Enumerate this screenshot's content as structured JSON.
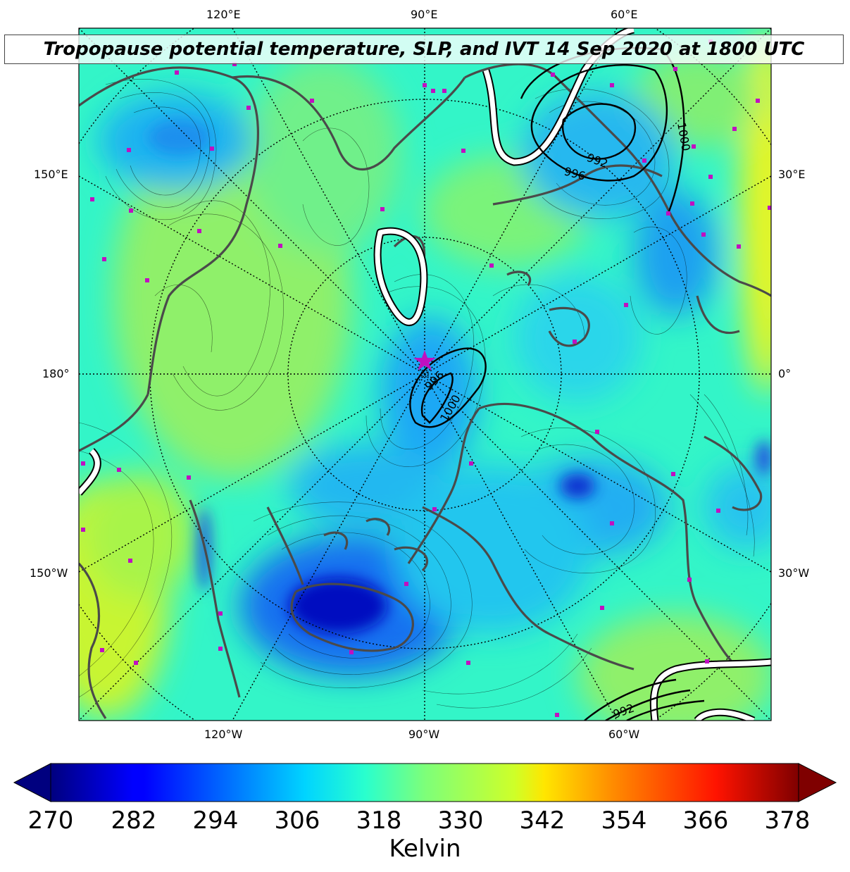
{
  "title": "Tropopause potential temperature, SLP, and IVT 14 Sep 2020 at 1800 UTC",
  "map": {
    "projection": "north polar stereographic",
    "center_marker": "star",
    "marker_color": "#c010c0",
    "coastline_color": "#444444",
    "longitude_labels": {
      "top": [
        "120°E",
        "90°E",
        "60°E"
      ],
      "bottom": [
        "120°W",
        "90°W",
        "60°W"
      ],
      "left": [
        "150°E",
        "180°",
        "150°W"
      ],
      "right": [
        "30°E",
        "0°",
        "30°W"
      ]
    },
    "slp_contour_labels": [
      "992",
      "996",
      "1000",
      "996",
      "1000",
      "992"
    ],
    "fill_field": "tropopause potential temperature",
    "contours": [
      "SLP (black lines)",
      "IVT (white lines)"
    ]
  },
  "colorbar": {
    "ticks": [
      "270",
      "282",
      "294",
      "306",
      "318",
      "330",
      "342",
      "354",
      "366",
      "378"
    ],
    "range": [
      270,
      378
    ],
    "label": "Kelvin",
    "colormap": "jet",
    "extend": "both"
  }
}
